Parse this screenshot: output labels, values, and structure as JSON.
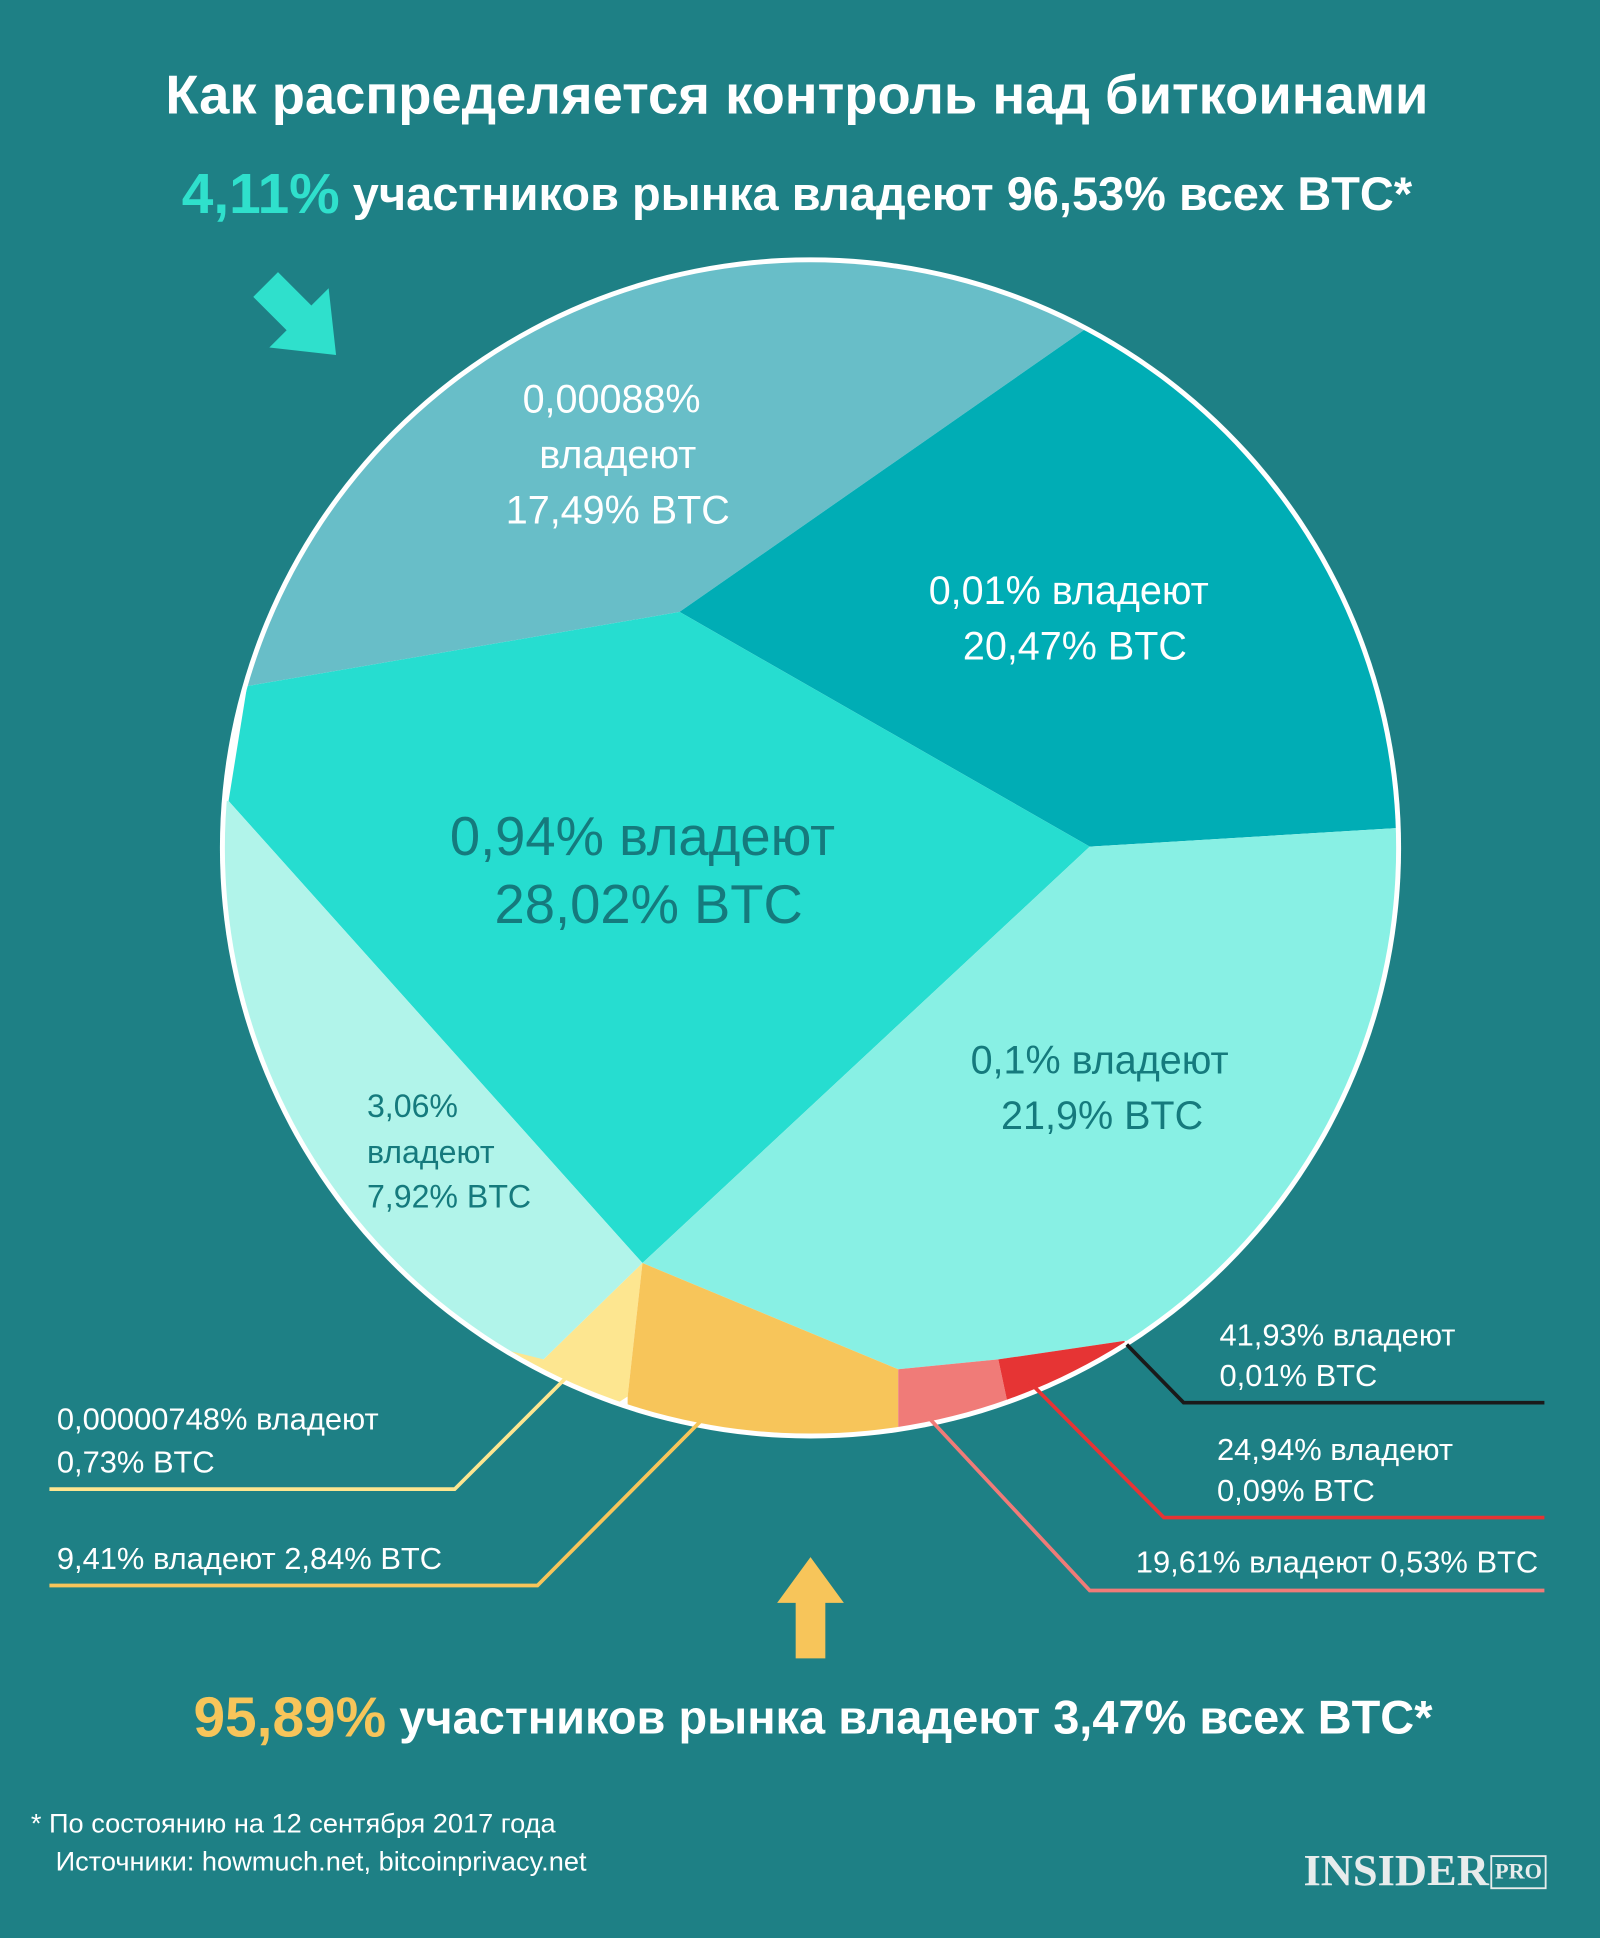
{
  "title": "Как распределяется контроль над биткоинами",
  "top_summary": {
    "highlight": "4,11%",
    "text": "участников рынка владеют 96,53% всех BTC*"
  },
  "segments": [
    {
      "lines": [
        "0,00088%",
        "владеют",
        "17,49% BTC"
      ]
    },
    {
      "lines": [
        "0,01% владеют",
        "20,47% BTC"
      ]
    },
    {
      "lines": [
        "0,94% владеют",
        "28,02% BTC"
      ]
    },
    {
      "lines": [
        "0,1% владеют",
        "21,9% BTC"
      ]
    },
    {
      "lines": [
        "3,06%",
        "владеют",
        "7,92% BTC"
      ]
    },
    {
      "lines": [
        "0,00000748% владеют",
        "0,73% BTC"
      ]
    },
    {
      "lines": [
        "9,41% владеют 2,84% BTC"
      ]
    },
    {
      "lines": [
        "41,93% владеют",
        "0,01% BTC"
      ]
    },
    {
      "lines": [
        "24,94% владеют",
        "0,09% BTC"
      ]
    },
    {
      "lines": [
        "19,61% владеют 0,53% BTC"
      ]
    }
  ],
  "bottom_summary": {
    "highlight": "95,89%",
    "text": "участников рынка владеют 3,47% всех BTC*"
  },
  "footnote": [
    "* По состоянию на 12 сентября 2017 года",
    "Источники: howmuch.net, bitcoinprivacy.net"
  ],
  "logo": {
    "name": "INSIDER",
    "badge": "PRO"
  }
}
